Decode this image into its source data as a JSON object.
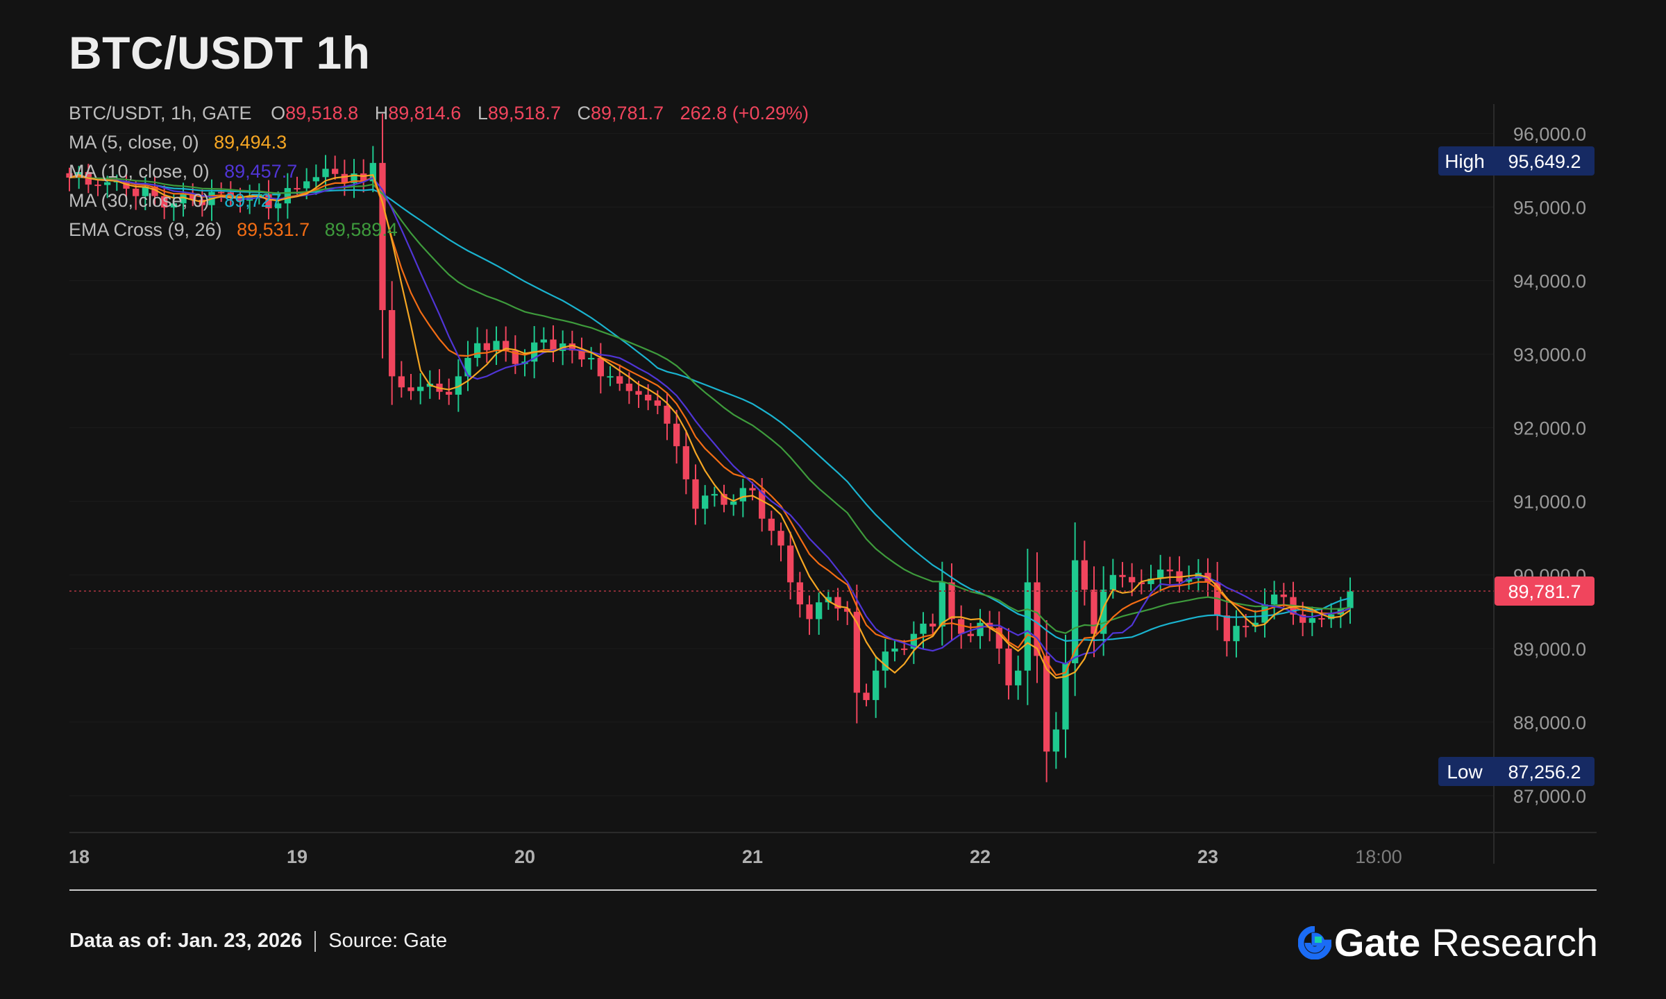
{
  "page": {
    "title": "BTC/USDT 1h"
  },
  "legend": {
    "ohlc": {
      "symbol_line": "BTC/USDT, 1h, GATE",
      "o_label": "O",
      "o_value": "89,518.8",
      "h_label": "H",
      "h_value": "89,814.6",
      "l_label": "L",
      "l_value": "89,518.7",
      "c_label": "C",
      "c_value": "89,781.7",
      "change": "262.8 (+0.29%)"
    },
    "ma5": {
      "label": "MA (5, close, 0)",
      "value": "89,494.3"
    },
    "ma10": {
      "label": "MA (10, close, 0)",
      "value": "89,457.7"
    },
    "ma30": {
      "label": "MA (30, close, 0)",
      "value": "89,727"
    },
    "ema": {
      "label": "EMA Cross (9, 26)",
      "value_fast": "89,531.7",
      "value_slow": "89,589.4"
    }
  },
  "footer": {
    "data_as_of": "Data as of: Jan. 23, 2026",
    "source": "Source:  Gate",
    "brand_gate": "Gate",
    "brand_research": "Research"
  },
  "colors": {
    "background": "#131313",
    "up": "#1fc98f",
    "down": "#f0455d",
    "ma5": "#f5a623",
    "ma10": "#5035d6",
    "ma30": "#1ab3cf",
    "ema_fast": "#f36d14",
    "ema_slow": "#3e9b3c",
    "price_tag": "#f0455d",
    "highlow_tag": "#162a63",
    "axis_text": "#9a9a9a",
    "grid": "#1c1c1c",
    "brand_accent": "#1b6cf5"
  },
  "chart_data": {
    "type": "candlestick",
    "title": "BTC/USDT 1h",
    "ylim": [
      86500,
      96400
    ],
    "y_ticks": [
      87000,
      88000,
      89000,
      90000,
      91000,
      92000,
      93000,
      94000,
      95000,
      96000
    ],
    "y_tick_labels": [
      "87,000.0",
      "88,000.0",
      "89,000.0",
      "90,000.0",
      "91,000.0",
      "92,000.0",
      "93,000.0",
      "94,000.0",
      "95,000.0",
      "96,000.0"
    ],
    "x_tick_labels": [
      "18",
      "19",
      "20",
      "21",
      "22",
      "23",
      "18:00"
    ],
    "x_tick_hours": [
      0,
      24,
      48,
      72,
      96,
      120,
      138
    ],
    "x_range_hours": [
      0,
      150
    ],
    "high_label": "High",
    "high_value": "95,649.2",
    "low_label": "Low",
    "low_value": "87,256.2",
    "last_price": 89781.7,
    "last_price_label": "89,781.7",
    "close_points": [
      {
        "h": 0,
        "c": 95400
      },
      {
        "h": 3,
        "c": 95300
      },
      {
        "h": 6,
        "c": 95250
      },
      {
        "h": 9,
        "c": 95150
      },
      {
        "h": 11,
        "c": 95050
      },
      {
        "h": 13,
        "c": 95100
      },
      {
        "h": 16,
        "c": 95200
      },
      {
        "h": 19,
        "c": 95150
      },
      {
        "h": 22,
        "c": 95050
      },
      {
        "h": 25,
        "c": 95350
      },
      {
        "h": 28,
        "c": 95450
      },
      {
        "h": 31,
        "c": 95350
      },
      {
        "h": 32,
        "c": 95600
      },
      {
        "h": 33,
        "c": 93600
      },
      {
        "h": 34,
        "c": 92700
      },
      {
        "h": 35,
        "c": 92550
      },
      {
        "h": 36,
        "c": 92500
      },
      {
        "h": 38,
        "c": 92600
      },
      {
        "h": 40,
        "c": 92450
      },
      {
        "h": 41,
        "c": 92700
      },
      {
        "h": 42,
        "c": 92950
      },
      {
        "h": 43,
        "c": 93150
      },
      {
        "h": 46,
        "c": 93050
      },
      {
        "h": 48,
        "c": 92900
      },
      {
        "h": 50,
        "c": 93200
      },
      {
        "h": 53,
        "c": 93050
      },
      {
        "h": 55,
        "c": 92950
      },
      {
        "h": 56,
        "c": 92700
      },
      {
        "h": 58,
        "c": 92600
      },
      {
        "h": 60,
        "c": 92450
      },
      {
        "h": 62,
        "c": 92300
      },
      {
        "h": 64,
        "c": 91750
      },
      {
        "h": 65,
        "c": 91300
      },
      {
        "h": 66,
        "c": 90900
      },
      {
        "h": 68,
        "c": 91100
      },
      {
        "h": 70,
        "c": 91000
      },
      {
        "h": 72,
        "c": 91150
      },
      {
        "h": 74,
        "c": 90600
      },
      {
        "h": 75,
        "c": 90400
      },
      {
        "h": 76,
        "c": 89900
      },
      {
        "h": 77,
        "c": 89600
      },
      {
        "h": 78,
        "c": 89400
      },
      {
        "h": 80,
        "c": 89700
      },
      {
        "h": 82,
        "c": 89500
      },
      {
        "h": 83,
        "c": 88400
      },
      {
        "h": 84,
        "c": 88300
      },
      {
        "h": 85,
        "c": 88700
      },
      {
        "h": 87,
        "c": 89000
      },
      {
        "h": 89,
        "c": 89200
      },
      {
        "h": 91,
        "c": 89300
      },
      {
        "h": 92,
        "c": 89900
      },
      {
        "h": 93,
        "c": 89400
      },
      {
        "h": 94,
        "c": 89200
      },
      {
        "h": 96,
        "c": 89350
      },
      {
        "h": 98,
        "c": 89000
      },
      {
        "h": 99,
        "c": 88500
      },
      {
        "h": 100,
        "c": 88700
      },
      {
        "h": 101,
        "c": 89900
      },
      {
        "h": 102,
        "c": 88900
      },
      {
        "h": 103,
        "c": 87600
      },
      {
        "h": 104,
        "c": 87900
      },
      {
        "h": 105,
        "c": 88800
      },
      {
        "h": 106,
        "c": 90200
      },
      {
        "h": 107,
        "c": 89800
      },
      {
        "h": 108,
        "c": 89200
      },
      {
        "h": 109,
        "c": 89800
      },
      {
        "h": 110,
        "c": 90000
      },
      {
        "h": 112,
        "c": 89900
      },
      {
        "h": 114,
        "c": 89950
      },
      {
        "h": 116,
        "c": 90050
      },
      {
        "h": 118,
        "c": 89950
      },
      {
        "h": 120,
        "c": 89900
      },
      {
        "h": 121,
        "c": 89450
      },
      {
        "h": 122,
        "c": 89100
      },
      {
        "h": 124,
        "c": 89300
      },
      {
        "h": 126,
        "c": 89600
      },
      {
        "h": 128,
        "c": 89700
      },
      {
        "h": 130,
        "c": 89350
      },
      {
        "h": 132,
        "c": 89400
      },
      {
        "h": 134,
        "c": 89550
      },
      {
        "h": 135,
        "c": 89780
      }
    ]
  }
}
